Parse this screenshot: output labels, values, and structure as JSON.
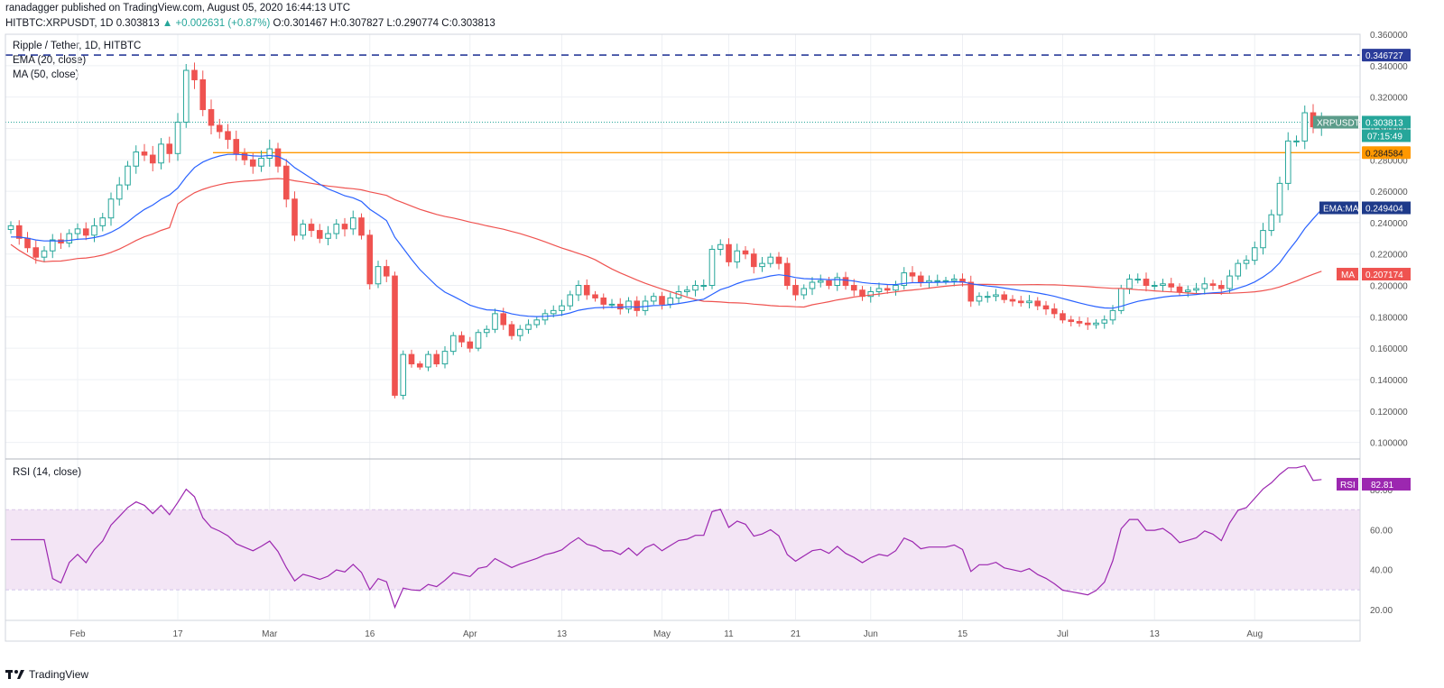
{
  "header": {
    "published": "ranadagger published on TradingView.com, August 05, 2020 16:44:13 UTC",
    "symbol_line": "HITBTC:XRPUSDT, 1D",
    "last": "0.303813",
    "change": "▲ +0.002631 (+0.87%)",
    "o": "O:0.301467",
    "h": "H:0.307827",
    "l": "L:0.290774",
    "c": "C:0.303813"
  },
  "legend": {
    "title": "Ripple / Tether, 1D, HITBTC",
    "ema": "EMA (20, close)",
    "ma": "MA (50, close)",
    "rsi": "RSI (14, close)"
  },
  "footer": {
    "brand": "TradingView"
  },
  "colors": {
    "up": "#26a69a",
    "down": "#ef5350",
    "ema": "#2962ff",
    "ma": "#ef5350",
    "rsi": "#9c27b0",
    "rsi_band": "#f3e5f5",
    "resistance": "#2a3c9a",
    "support": "#ff9800"
  },
  "chart_data": [
    {
      "type": "candlestick",
      "title": "Ripple / Tether, 1D, HITBTC",
      "ylim": [
        0.09,
        0.36
      ],
      "y_ticks": [
        "0.100000",
        "0.120000",
        "0.140000",
        "0.160000",
        "0.180000",
        "0.200000",
        "0.220000",
        "0.240000",
        "0.260000",
        "0.280000",
        "0.300000",
        "0.320000",
        "0.340000",
        "0.360000"
      ],
      "x_ticks": [
        "Feb",
        "17",
        "Mar",
        "16",
        "Apr",
        "13",
        "May",
        "11",
        "21",
        "Jun",
        "15",
        "Jul",
        "13",
        "Aug"
      ],
      "series": [
        {
          "name": "EMA (20, close)",
          "label": "EMA:MA",
          "last": "0.249404"
        },
        {
          "name": "MA (50, close)",
          "label": "MA",
          "last": "0.207174"
        },
        {
          "name": "XRPUSDT",
          "label": "XRPUSDT",
          "last": "0.303813",
          "countdown": "07:15:49"
        }
      ],
      "levels": [
        {
          "value": 0.346727,
          "label": "0.346727",
          "style": "dashed"
        },
        {
          "value": 0.284584,
          "label": "0.284584",
          "style": "solid"
        }
      ],
      "close": [
        0.238,
        0.23,
        0.224,
        0.218,
        0.222,
        0.229,
        0.227,
        0.233,
        0.236,
        0.232,
        0.238,
        0.243,
        0.255,
        0.264,
        0.276,
        0.285,
        0.283,
        0.278,
        0.29,
        0.284,
        0.304,
        0.337,
        0.331,
        0.312,
        0.302,
        0.298,
        0.293,
        0.284,
        0.28,
        0.276,
        0.281,
        0.287,
        0.276,
        0.255,
        0.232,
        0.239,
        0.235,
        0.23,
        0.233,
        0.239,
        0.236,
        0.243,
        0.232,
        0.201,
        0.212,
        0.206,
        0.13,
        0.156,
        0.15,
        0.148,
        0.156,
        0.15,
        0.158,
        0.168,
        0.164,
        0.16,
        0.17,
        0.172,
        0.182,
        0.175,
        0.168,
        0.172,
        0.175,
        0.178,
        0.182,
        0.184,
        0.187,
        0.194,
        0.2,
        0.194,
        0.192,
        0.188,
        0.188,
        0.185,
        0.19,
        0.184,
        0.19,
        0.193,
        0.188,
        0.192,
        0.196,
        0.197,
        0.2,
        0.2,
        0.223,
        0.226,
        0.215,
        0.222,
        0.22,
        0.212,
        0.214,
        0.218,
        0.214,
        0.2,
        0.194,
        0.198,
        0.202,
        0.203,
        0.2,
        0.205,
        0.2,
        0.197,
        0.193,
        0.196,
        0.198,
        0.197,
        0.2,
        0.208,
        0.206,
        0.202,
        0.203,
        0.203,
        0.203,
        0.204,
        0.202,
        0.19,
        0.193,
        0.193,
        0.194,
        0.191,
        0.19,
        0.189,
        0.19,
        0.187,
        0.185,
        0.182,
        0.178,
        0.177,
        0.176,
        0.175,
        0.176,
        0.178,
        0.184,
        0.198,
        0.204,
        0.204,
        0.2,
        0.2,
        0.201,
        0.199,
        0.196,
        0.197,
        0.198,
        0.201,
        0.2,
        0.198,
        0.206,
        0.214,
        0.216,
        0.224,
        0.235,
        0.245,
        0.265,
        0.292,
        0.292,
        0.31,
        0.301,
        0.304
      ],
      "ema_last": 0.249404,
      "ma_last": 0.207174
    },
    {
      "type": "line",
      "title": "RSI (14, close)",
      "ylim": [
        15,
        95
      ],
      "y_ticks": [
        "20.00",
        "40.00",
        "60.00",
        "80.00"
      ],
      "band": [
        30,
        70
      ],
      "last": "82.81",
      "label": "RSI"
    }
  ]
}
